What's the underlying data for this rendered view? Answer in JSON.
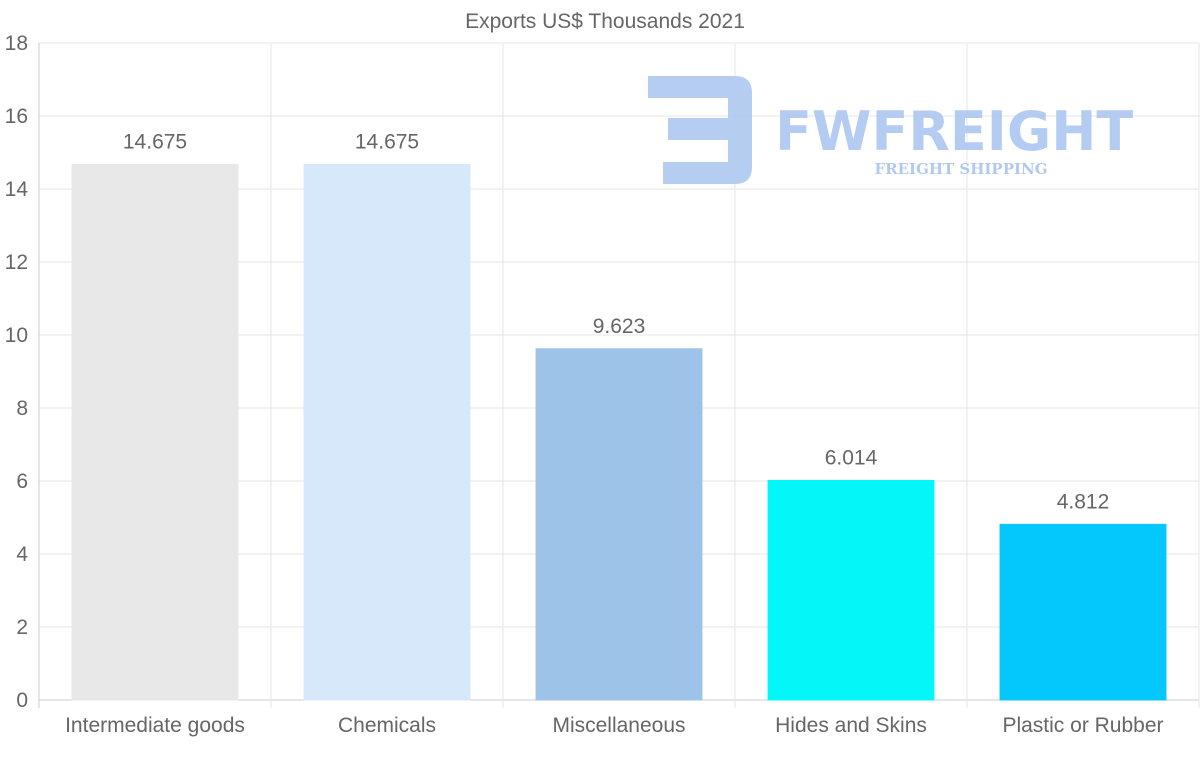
{
  "chart_data": {
    "type": "bar",
    "title": "Exports US$ Thousands 2021",
    "categories": [
      "Intermediate goods",
      "Chemicals",
      "Miscellaneous",
      "Hides and Skins",
      "Plastic or Rubber"
    ],
    "values": [
      14.675,
      14.675,
      9.623,
      6.014,
      4.812
    ],
    "data_labels": [
      "14.675",
      "14.675",
      "9.623",
      "6.014",
      "4.812"
    ],
    "colors": [
      "#e8e8e8",
      "#d6e8fa",
      "#9dc4e8",
      "#04f7f8",
      "#04c8fc"
    ],
    "ylim": [
      0,
      18
    ],
    "yticks": [
      0,
      2,
      4,
      6,
      8,
      10,
      12,
      14,
      16,
      18
    ],
    "xlabel": "",
    "ylabel": "",
    "grid": true,
    "legend": "none"
  },
  "watermark": {
    "brand": "FWFREIGHT",
    "tagline": "FREIGHT SHIPPING",
    "color": "#a9c4f0"
  }
}
